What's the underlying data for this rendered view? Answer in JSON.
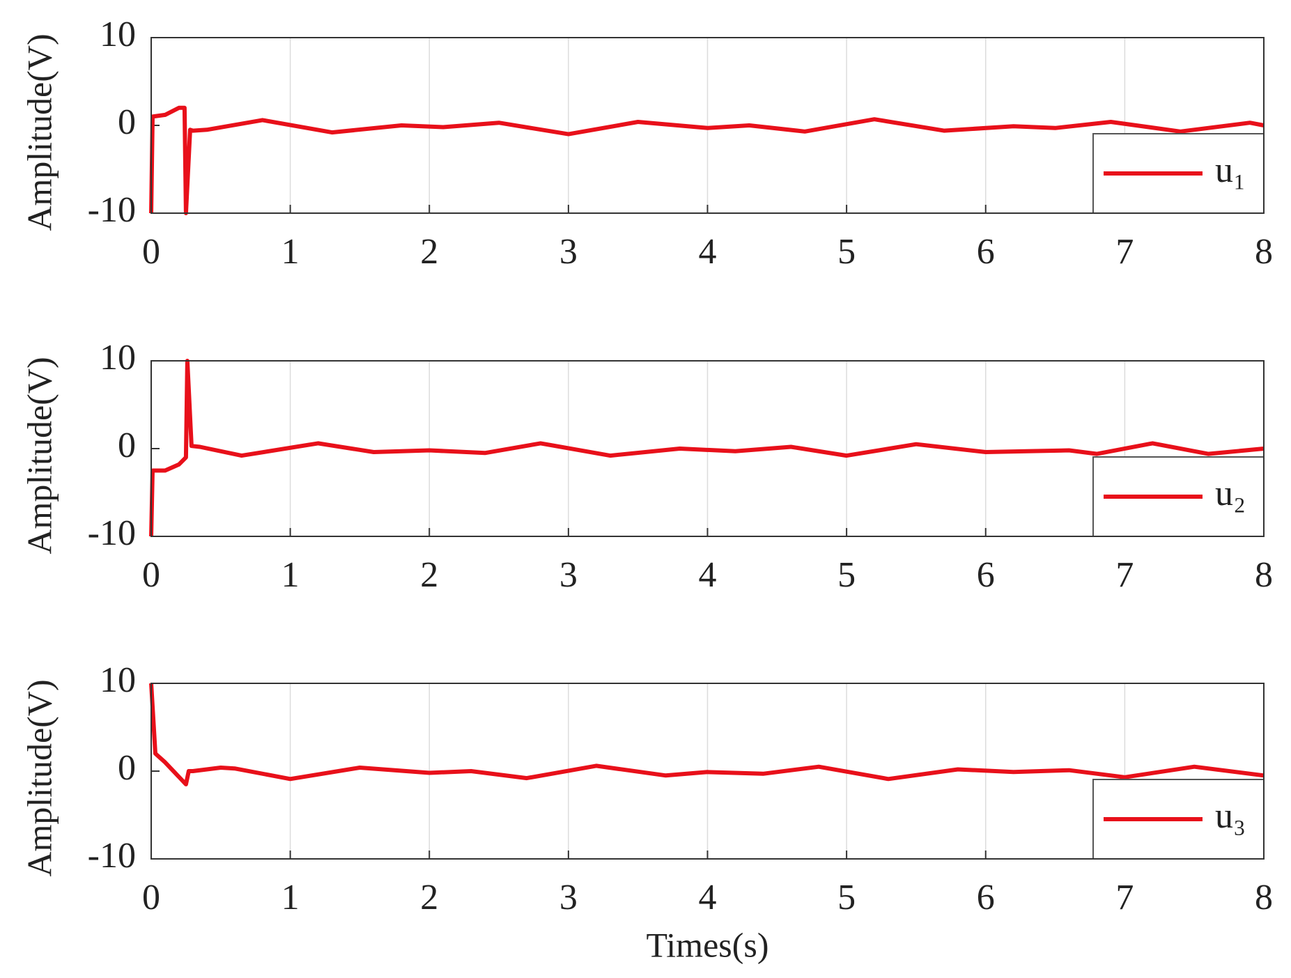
{
  "chart_data": [
    {
      "type": "line",
      "ylabel": "Amplitude(V)",
      "xlim": [
        0,
        8
      ],
      "ylim": [
        -10,
        10
      ],
      "xticks": [
        0,
        1,
        2,
        3,
        4,
        5,
        6,
        7,
        8
      ],
      "yticks": [
        -10,
        0,
        10
      ],
      "xgrid": true,
      "legend": "lower right",
      "x": [
        0,
        0.01,
        0.1,
        0.2,
        0.24,
        0.25,
        0.28,
        0.3,
        0.4,
        0.8,
        1.3,
        1.8,
        2.1,
        2.5,
        3.0,
        3.5,
        4.0,
        4.3,
        4.7,
        5.2,
        5.7,
        6.2,
        6.5,
        6.9,
        7.4,
        7.9,
        8
      ],
      "series": [
        {
          "name": "u₁",
          "color": "#e8101a",
          "values": [
            -10,
            1,
            1.2,
            2,
            2,
            -10,
            -0.5,
            -0.6,
            -0.5,
            0.6,
            -0.8,
            0,
            -0.2,
            0.3,
            -1,
            0.4,
            -0.3,
            0,
            -0.7,
            0.7,
            -0.6,
            -0.1,
            -0.3,
            0.4,
            -0.7,
            0.3,
            0
          ]
        }
      ]
    },
    {
      "type": "line",
      "ylabel": "Amplitude(V)",
      "xlim": [
        0,
        8
      ],
      "ylim": [
        -10,
        10
      ],
      "xticks": [
        0,
        1,
        2,
        3,
        4,
        5,
        6,
        7,
        8
      ],
      "yticks": [
        -10,
        0,
        10
      ],
      "xgrid": true,
      "legend": "lower right",
      "x": [
        0,
        0.01,
        0.1,
        0.2,
        0.25,
        0.26,
        0.29,
        0.35,
        0.65,
        1.2,
        1.6,
        2.0,
        2.4,
        2.8,
        3.3,
        3.8,
        4.2,
        4.6,
        5.0,
        5.5,
        6.0,
        6.3,
        6.6,
        6.8,
        7.2,
        7.6,
        8
      ],
      "series": [
        {
          "name": "u₂",
          "color": "#e8101a",
          "values": [
            -10,
            -2.5,
            -2.5,
            -1.8,
            -1,
            10,
            0.3,
            0.2,
            -0.8,
            0.6,
            -0.4,
            -0.2,
            -0.5,
            0.6,
            -0.8,
            0,
            -0.3,
            0.2,
            -0.8,
            0.5,
            -0.4,
            -0.3,
            -0.2,
            -0.6,
            0.6,
            -0.6,
            0
          ]
        }
      ]
    },
    {
      "type": "line",
      "ylabel": "Amplitude(V)",
      "xlabel": "Times(s)",
      "xlim": [
        0,
        8
      ],
      "ylim": [
        -10,
        10
      ],
      "xticks": [
        0,
        1,
        2,
        3,
        4,
        5,
        6,
        7,
        8
      ],
      "yticks": [
        -10,
        0,
        10
      ],
      "xgrid": true,
      "legend": "lower right",
      "x": [
        0,
        0.03,
        0.1,
        0.25,
        0.27,
        0.3,
        0.5,
        0.6,
        1.0,
        1.5,
        2.0,
        2.3,
        2.7,
        3.2,
        3.7,
        4.0,
        4.4,
        4.8,
        5.3,
        5.8,
        6.2,
        6.6,
        7.0,
        7.5,
        8
      ],
      "series": [
        {
          "name": "u₃",
          "color": "#e8101a",
          "values": [
            10,
            2,
            1,
            -1.5,
            0,
            0,
            0.4,
            0.3,
            -0.9,
            0.4,
            -0.2,
            0,
            -0.8,
            0.6,
            -0.5,
            -0.1,
            -0.3,
            0.5,
            -0.9,
            0.2,
            -0.1,
            0.1,
            -0.7,
            0.5,
            -0.5
          ]
        }
      ]
    }
  ]
}
